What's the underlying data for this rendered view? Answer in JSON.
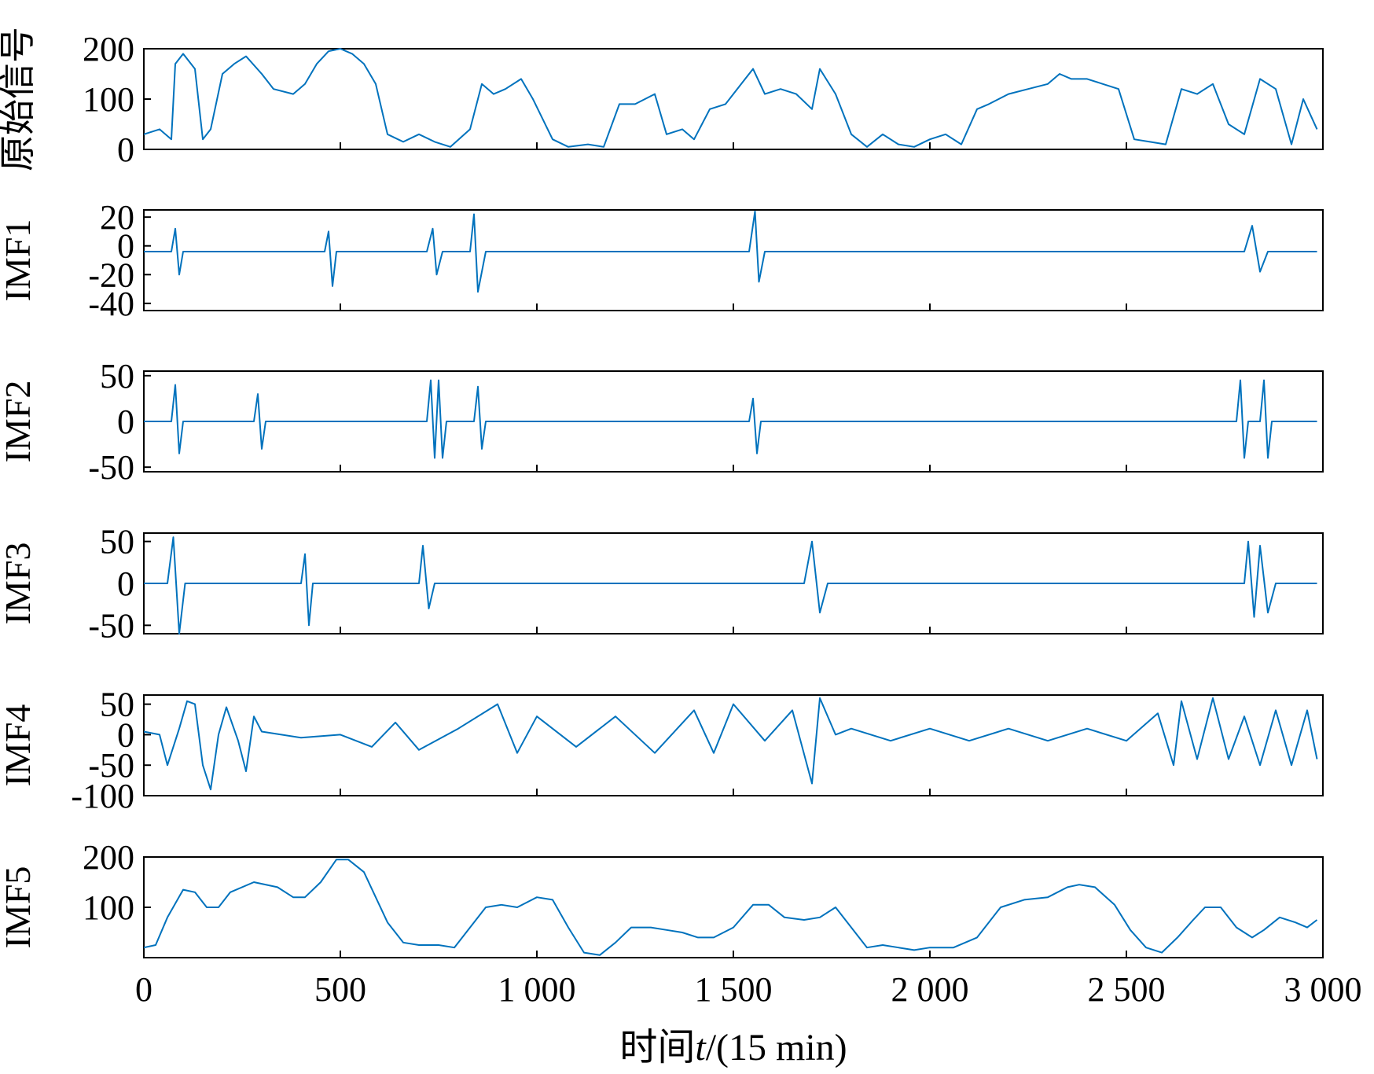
{
  "chart_data": {
    "type": "line",
    "line_color": "#0072BD",
    "x_axis": {
      "label_prefix": "时间",
      "label_var": "t",
      "label_suffix": "/(15 min)",
      "xlim": [
        0,
        3000
      ],
      "ticks": [
        0,
        500,
        1000,
        1500,
        2000,
        2500,
        3000
      ],
      "tick_labels": [
        "0",
        "500",
        "1 000",
        "1 500",
        "2 000",
        "2 500",
        "3 000"
      ]
    },
    "panels": [
      {
        "ylabel": "原始信号",
        "ylim": [
          0,
          200
        ],
        "yticks": [
          0,
          100,
          200
        ],
        "ytick_labels": [
          "0",
          "100",
          "200"
        ],
        "points": [
          [
            0,
            30
          ],
          [
            40,
            40
          ],
          [
            70,
            20
          ],
          [
            80,
            170
          ],
          [
            100,
            190
          ],
          [
            130,
            160
          ],
          [
            150,
            20
          ],
          [
            170,
            40
          ],
          [
            200,
            150
          ],
          [
            230,
            170
          ],
          [
            260,
            185
          ],
          [
            300,
            150
          ],
          [
            330,
            120
          ],
          [
            380,
            110
          ],
          [
            410,
            130
          ],
          [
            440,
            170
          ],
          [
            470,
            195
          ],
          [
            500,
            200
          ],
          [
            530,
            190
          ],
          [
            560,
            170
          ],
          [
            590,
            130
          ],
          [
            620,
            30
          ],
          [
            660,
            15
          ],
          [
            700,
            30
          ],
          [
            740,
            15
          ],
          [
            780,
            5
          ],
          [
            830,
            40
          ],
          [
            860,
            130
          ],
          [
            890,
            110
          ],
          [
            920,
            120
          ],
          [
            960,
            140
          ],
          [
            990,
            100
          ],
          [
            1040,
            20
          ],
          [
            1080,
            5
          ],
          [
            1130,
            10
          ],
          [
            1170,
            5
          ],
          [
            1210,
            90
          ],
          [
            1250,
            90
          ],
          [
            1300,
            110
          ],
          [
            1330,
            30
          ],
          [
            1370,
            40
          ],
          [
            1400,
            20
          ],
          [
            1440,
            80
          ],
          [
            1480,
            90
          ],
          [
            1520,
            130
          ],
          [
            1550,
            160
          ],
          [
            1580,
            110
          ],
          [
            1620,
            120
          ],
          [
            1660,
            110
          ],
          [
            1700,
            80
          ],
          [
            1720,
            160
          ],
          [
            1760,
            110
          ],
          [
            1800,
            30
          ],
          [
            1840,
            5
          ],
          [
            1880,
            30
          ],
          [
            1920,
            10
          ],
          [
            1960,
            5
          ],
          [
            2000,
            20
          ],
          [
            2040,
            30
          ],
          [
            2080,
            10
          ],
          [
            2120,
            80
          ],
          [
            2150,
            90
          ],
          [
            2200,
            110
          ],
          [
            2250,
            120
          ],
          [
            2300,
            130
          ],
          [
            2330,
            150
          ],
          [
            2360,
            140
          ],
          [
            2400,
            140
          ],
          [
            2440,
            130
          ],
          [
            2480,
            120
          ],
          [
            2520,
            20
          ],
          [
            2560,
            15
          ],
          [
            2600,
            10
          ],
          [
            2640,
            120
          ],
          [
            2680,
            110
          ],
          [
            2720,
            130
          ],
          [
            2760,
            50
          ],
          [
            2800,
            30
          ],
          [
            2840,
            140
          ],
          [
            2880,
            120
          ],
          [
            2920,
            10
          ],
          [
            2950,
            100
          ],
          [
            2985,
            40
          ]
        ]
      },
      {
        "ylabel": "IMF1",
        "ylim": [
          -45,
          25
        ],
        "yticks": [
          -40,
          -20,
          0,
          20
        ],
        "ytick_labels": [
          "-40",
          "-20",
          "0",
          "20"
        ],
        "points": [
          [
            0,
            -4
          ],
          [
            70,
            -4
          ],
          [
            80,
            12
          ],
          [
            90,
            -20
          ],
          [
            100,
            -4
          ],
          [
            200,
            -4
          ],
          [
            300,
            -4
          ],
          [
            460,
            -4
          ],
          [
            470,
            10
          ],
          [
            480,
            -28
          ],
          [
            490,
            -4
          ],
          [
            600,
            -4
          ],
          [
            720,
            -4
          ],
          [
            735,
            12
          ],
          [
            745,
            -20
          ],
          [
            760,
            -4
          ],
          [
            830,
            -4
          ],
          [
            840,
            22
          ],
          [
            850,
            -32
          ],
          [
            870,
            -4
          ],
          [
            1000,
            -4
          ],
          [
            1540,
            -4
          ],
          [
            1555,
            24
          ],
          [
            1565,
            -25
          ],
          [
            1580,
            -4
          ],
          [
            1900,
            -4
          ],
          [
            2800,
            -4
          ],
          [
            2820,
            14
          ],
          [
            2840,
            -18
          ],
          [
            2860,
            -4
          ],
          [
            2985,
            -4
          ]
        ]
      },
      {
        "ylabel": "IMF2",
        "ylim": [
          -55,
          55
        ],
        "yticks": [
          -50,
          0,
          50
        ],
        "ytick_labels": [
          "-50",
          "0",
          "50"
        ],
        "points": [
          [
            0,
            0
          ],
          [
            70,
            0
          ],
          [
            80,
            40
          ],
          [
            90,
            -35
          ],
          [
            100,
            0
          ],
          [
            280,
            0
          ],
          [
            290,
            30
          ],
          [
            300,
            -30
          ],
          [
            310,
            0
          ],
          [
            720,
            0
          ],
          [
            730,
            45
          ],
          [
            740,
            -40
          ],
          [
            750,
            45
          ],
          [
            760,
            -40
          ],
          [
            770,
            0
          ],
          [
            840,
            0
          ],
          [
            850,
            38
          ],
          [
            860,
            -30
          ],
          [
            870,
            0
          ],
          [
            1540,
            0
          ],
          [
            1550,
            25
          ],
          [
            1560,
            -35
          ],
          [
            1570,
            0
          ],
          [
            2780,
            0
          ],
          [
            2790,
            45
          ],
          [
            2800,
            -40
          ],
          [
            2810,
            0
          ],
          [
            2840,
            0
          ],
          [
            2850,
            45
          ],
          [
            2860,
            -40
          ],
          [
            2870,
            0
          ],
          [
            2985,
            0
          ]
        ]
      },
      {
        "ylabel": "IMF3",
        "ylim": [
          -60,
          60
        ],
        "yticks": [
          -50,
          0,
          50
        ],
        "ytick_labels": [
          "-50",
          "0",
          "50"
        ],
        "points": [
          [
            0,
            0
          ],
          [
            60,
            0
          ],
          [
            75,
            55
          ],
          [
            90,
            -60
          ],
          [
            105,
            0
          ],
          [
            400,
            0
          ],
          [
            410,
            35
          ],
          [
            420,
            -50
          ],
          [
            430,
            0
          ],
          [
            700,
            0
          ],
          [
            710,
            45
          ],
          [
            725,
            -30
          ],
          [
            740,
            0
          ],
          [
            1680,
            0
          ],
          [
            1700,
            50
          ],
          [
            1720,
            -35
          ],
          [
            1740,
            0
          ],
          [
            2800,
            0
          ],
          [
            2810,
            50
          ],
          [
            2825,
            -40
          ],
          [
            2840,
            45
          ],
          [
            2860,
            -35
          ],
          [
            2880,
            0
          ],
          [
            2985,
            0
          ]
        ]
      },
      {
        "ylabel": "IMF4",
        "ylim": [
          -100,
          65
        ],
        "yticks": [
          -100,
          -50,
          0,
          50
        ],
        "ytick_labels": [
          "-100",
          "-50",
          "0",
          "50"
        ],
        "points": [
          [
            0,
            5
          ],
          [
            40,
            0
          ],
          [
            60,
            -50
          ],
          [
            90,
            10
          ],
          [
            110,
            55
          ],
          [
            130,
            50
          ],
          [
            150,
            -50
          ],
          [
            170,
            -90
          ],
          [
            190,
            0
          ],
          [
            210,
            45
          ],
          [
            240,
            -10
          ],
          [
            260,
            -60
          ],
          [
            280,
            30
          ],
          [
            300,
            5
          ],
          [
            400,
            -5
          ],
          [
            500,
            0
          ],
          [
            580,
            -20
          ],
          [
            640,
            20
          ],
          [
            700,
            -25
          ],
          [
            800,
            10
          ],
          [
            900,
            50
          ],
          [
            950,
            -30
          ],
          [
            1000,
            30
          ],
          [
            1100,
            -20
          ],
          [
            1200,
            30
          ],
          [
            1300,
            -30
          ],
          [
            1400,
            40
          ],
          [
            1450,
            -30
          ],
          [
            1500,
            50
          ],
          [
            1580,
            -10
          ],
          [
            1650,
            40
          ],
          [
            1700,
            -80
          ],
          [
            1720,
            60
          ],
          [
            1760,
            0
          ],
          [
            1800,
            10
          ],
          [
            1900,
            -10
          ],
          [
            2000,
            10
          ],
          [
            2100,
            -10
          ],
          [
            2200,
            10
          ],
          [
            2300,
            -10
          ],
          [
            2400,
            10
          ],
          [
            2500,
            -10
          ],
          [
            2580,
            35
          ],
          [
            2620,
            -50
          ],
          [
            2640,
            55
          ],
          [
            2680,
            -40
          ],
          [
            2720,
            60
          ],
          [
            2760,
            -40
          ],
          [
            2800,
            30
          ],
          [
            2840,
            -50
          ],
          [
            2880,
            40
          ],
          [
            2920,
            -50
          ],
          [
            2960,
            40
          ],
          [
            2985,
            -40
          ]
        ]
      },
      {
        "ylabel": "IMF5",
        "ylim": [
          0,
          200
        ],
        "yticks": [
          100,
          200
        ],
        "ytick_labels": [
          "100",
          "200"
        ],
        "points": [
          [
            0,
            20
          ],
          [
            30,
            25
          ],
          [
            60,
            80
          ],
          [
            100,
            135
          ],
          [
            130,
            130
          ],
          [
            160,
            100
          ],
          [
            190,
            100
          ],
          [
            220,
            130
          ],
          [
            280,
            150
          ],
          [
            340,
            140
          ],
          [
            380,
            120
          ],
          [
            410,
            120
          ],
          [
            450,
            150
          ],
          [
            490,
            195
          ],
          [
            520,
            195
          ],
          [
            560,
            170
          ],
          [
            620,
            70
          ],
          [
            660,
            30
          ],
          [
            700,
            25
          ],
          [
            750,
            25
          ],
          [
            790,
            20
          ],
          [
            830,
            60
          ],
          [
            870,
            100
          ],
          [
            910,
            105
          ],
          [
            950,
            100
          ],
          [
            1000,
            120
          ],
          [
            1040,
            115
          ],
          [
            1080,
            60
          ],
          [
            1120,
            10
          ],
          [
            1160,
            5
          ],
          [
            1200,
            30
          ],
          [
            1240,
            60
          ],
          [
            1290,
            60
          ],
          [
            1330,
            55
          ],
          [
            1370,
            50
          ],
          [
            1410,
            40
          ],
          [
            1450,
            40
          ],
          [
            1500,
            60
          ],
          [
            1550,
            105
          ],
          [
            1590,
            105
          ],
          [
            1630,
            80
          ],
          [
            1680,
            75
          ],
          [
            1720,
            80
          ],
          [
            1760,
            100
          ],
          [
            1800,
            60
          ],
          [
            1840,
            20
          ],
          [
            1880,
            25
          ],
          [
            1920,
            20
          ],
          [
            1960,
            15
          ],
          [
            2000,
            20
          ],
          [
            2060,
            20
          ],
          [
            2120,
            40
          ],
          [
            2180,
            100
          ],
          [
            2240,
            115
          ],
          [
            2300,
            120
          ],
          [
            2350,
            140
          ],
          [
            2380,
            145
          ],
          [
            2420,
            140
          ],
          [
            2470,
            105
          ],
          [
            2510,
            55
          ],
          [
            2550,
            20
          ],
          [
            2590,
            10
          ],
          [
            2630,
            40
          ],
          [
            2670,
            75
          ],
          [
            2700,
            100
          ],
          [
            2740,
            100
          ],
          [
            2780,
            60
          ],
          [
            2820,
            40
          ],
          [
            2850,
            55
          ],
          [
            2890,
            80
          ],
          [
            2930,
            70
          ],
          [
            2960,
            60
          ],
          [
            2985,
            75
          ]
        ]
      }
    ]
  }
}
